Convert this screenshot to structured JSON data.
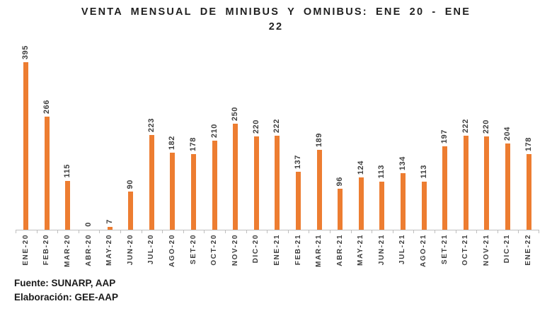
{
  "title_lines": [
    "VENTA MENSUAL DE MINIBUS Y OMNIBUS: ENE 20 - ENE",
    "22"
  ],
  "footer": {
    "source": "Fuente: SUNARP, AAP",
    "elaboration": "Elaboración: GEE-AAP"
  },
  "colors": {
    "bar": "#ED7D31",
    "axis": "#BFBFBF",
    "label": "#3F3F3F",
    "title": "#1F1F1F"
  },
  "chart_data": {
    "type": "bar",
    "title": "VENTA MENSUAL DE MINIBUS Y OMNIBUS: ENE 20 - ENE 22",
    "categories": [
      "ENE-20",
      "FEB-20",
      "MAR-20",
      "ABR-20",
      "MAY-20",
      "JUN-20",
      "JUL-20",
      "AGO-20",
      "SET-20",
      "OCT-20",
      "NOV-20",
      "DIC-20",
      "ENE-21",
      "FEB-21",
      "MAR-21",
      "ABR-21",
      "MAY-21",
      "JUN-21",
      "JUL-21",
      "AGO-21",
      "SET-21",
      "OCT-21",
      "NOV-21",
      "DIC-21",
      "ENE-22"
    ],
    "values": [
      395,
      266,
      115,
      0,
      7,
      90,
      223,
      182,
      178,
      210,
      250,
      220,
      222,
      137,
      189,
      96,
      124,
      113,
      134,
      113,
      197,
      222,
      220,
      204,
      178
    ],
    "xlabel": "",
    "ylabel": "",
    "ylim": [
      0,
      400
    ],
    "grid": false,
    "legend": false,
    "data_labels": true,
    "bar_color": "#ED7D31",
    "orientation": "vertical"
  }
}
